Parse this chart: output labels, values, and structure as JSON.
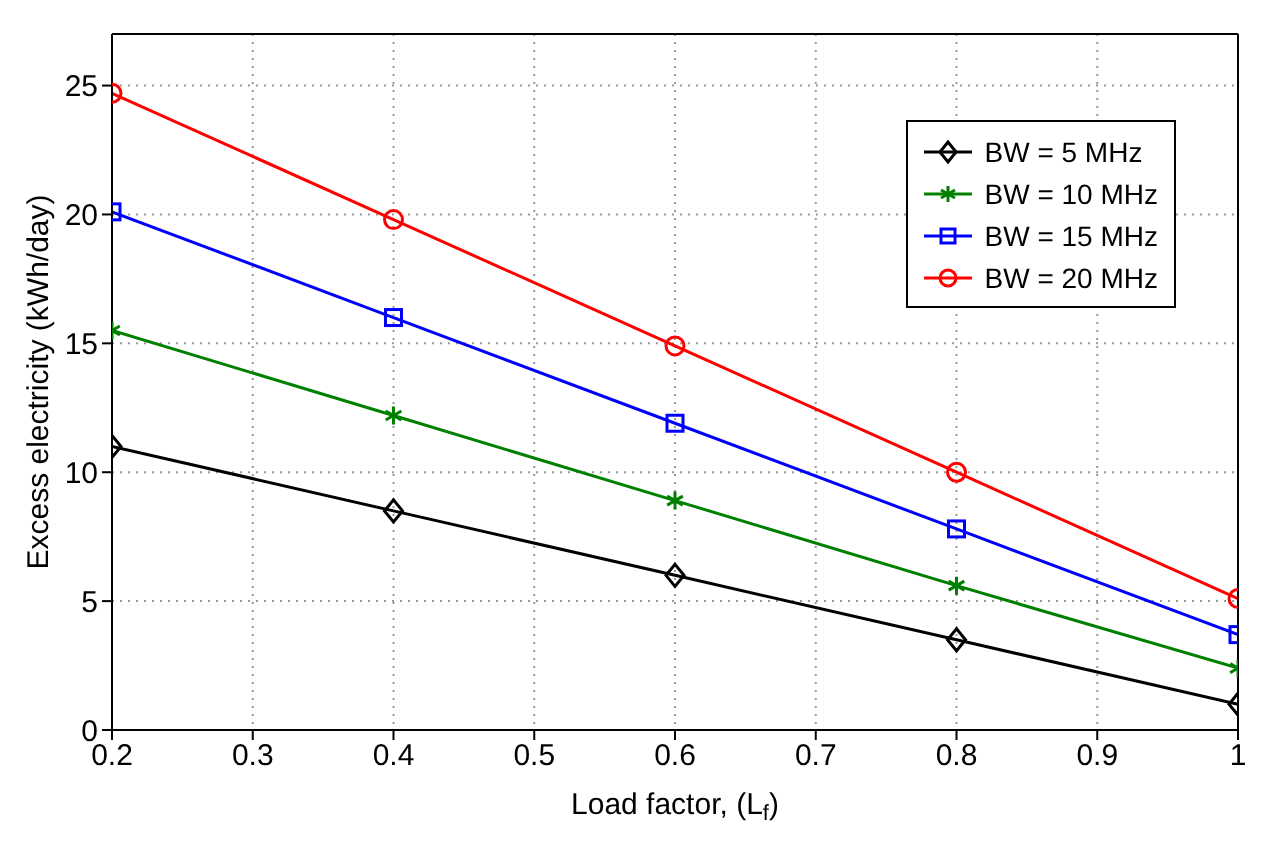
{
  "chart_data": {
    "type": "line",
    "xlabel": "Load factor, (L$_{f}$)",
    "ylabel": "Excess electricity (kWh/day)",
    "x": [
      0.2,
      0.4,
      0.6,
      0.8,
      1
    ],
    "series": [
      {
        "name": "BW = 5 MHz",
        "color": "#000000",
        "marker": "diamond",
        "values": [
          11,
          8.5,
          6,
          3.5,
          1
        ]
      },
      {
        "name": "BW = 10 MHz",
        "color": "#008000",
        "marker": "cross",
        "values": [
          15.5,
          12.2,
          8.9,
          5.6,
          2.4
        ]
      },
      {
        "name": "BW = 15 MHz",
        "color": "#0000ff",
        "marker": "square",
        "values": [
          20.1,
          16,
          11.9,
          7.8,
          3.7
        ]
      },
      {
        "name": "BW = 20 MHz",
        "color": "#ff0000",
        "marker": "circle",
        "values": [
          24.7,
          19.8,
          14.9,
          10,
          5.1
        ]
      }
    ],
    "xlim": [
      0.2,
      1
    ],
    "xticks": [
      0.2,
      0.3,
      0.4,
      0.5,
      0.6,
      0.7,
      0.8,
      0.9,
      1
    ],
    "ylim": [
      0,
      27
    ],
    "yticks": [
      0,
      5,
      10,
      15,
      20,
      25
    ],
    "grid": true,
    "legend": "top right",
    "line_style": "solid"
  }
}
